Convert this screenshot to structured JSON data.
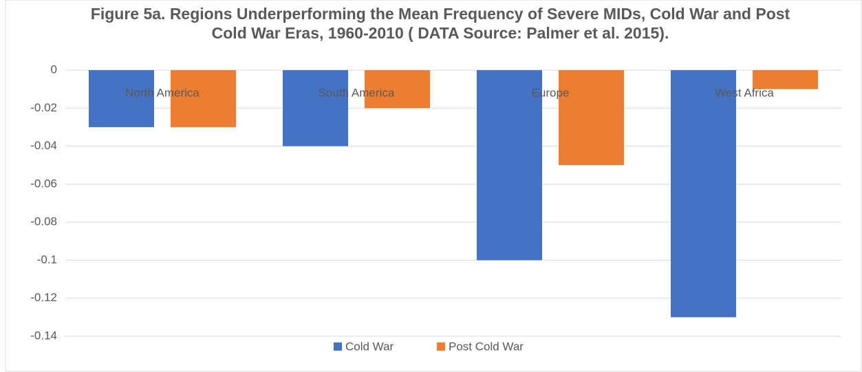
{
  "chart_data": {
    "type": "bar",
    "title": "Figure 5a. Regions Underperforming the Mean Frequency of Severe MIDs, Cold War and Post Cold War Eras, 1960-2010 ( DATA Source: Palmer et al. 2015).",
    "categories": [
      "North America",
      "South America",
      "Europe",
      "West Africa"
    ],
    "series": [
      {
        "name": "Cold War",
        "color": "#4472c4",
        "values": [
          -0.03,
          -0.04,
          -0.1,
          -0.13
        ]
      },
      {
        "name": "Post Cold War",
        "color": "#ed7d31",
        "values": [
          -0.03,
          -0.02,
          -0.05,
          -0.01
        ]
      }
    ],
    "ylim": [
      -0.14,
      0
    ],
    "yticks": [
      0,
      -0.02,
      -0.04,
      -0.06,
      -0.08,
      -0.1,
      -0.12,
      -0.14
    ],
    "grid": true,
    "legend": "bottom"
  }
}
